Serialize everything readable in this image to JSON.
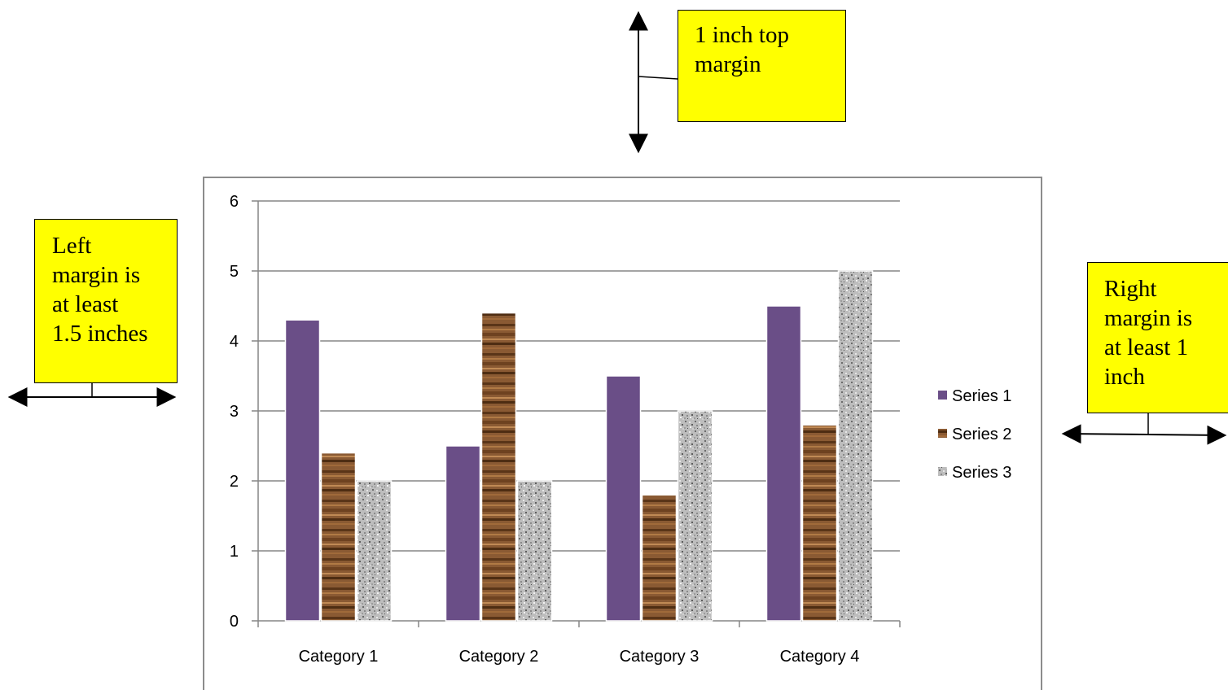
{
  "annotations": {
    "top": "1 inch top\nmargin",
    "left": "Left\nmargin is\nat least\n1.5 inches",
    "right": "Right\nmargin is\nat least 1\ninch"
  },
  "colors": {
    "note_fill": "#ffff00",
    "series1": "#6a4e87",
    "series2": "#8a5a33",
    "series3": "#b9b9b9"
  },
  "chart_data": {
    "type": "bar",
    "categories": [
      "Category 1",
      "Category 2",
      "Category 3",
      "Category 4"
    ],
    "series": [
      {
        "name": "Series 1",
        "values": [
          4.3,
          2.5,
          3.5,
          4.5
        ]
      },
      {
        "name": "Series 2",
        "values": [
          2.4,
          4.4,
          1.8,
          2.8
        ]
      },
      {
        "name": "Series 3",
        "values": [
          2,
          2,
          3,
          5
        ]
      }
    ],
    "title": "",
    "xlabel": "",
    "ylabel": "",
    "ylim": [
      0,
      6
    ],
    "yticks": [
      0,
      1,
      2,
      3,
      4,
      5,
      6
    ],
    "grid": true,
    "legend": "right"
  }
}
